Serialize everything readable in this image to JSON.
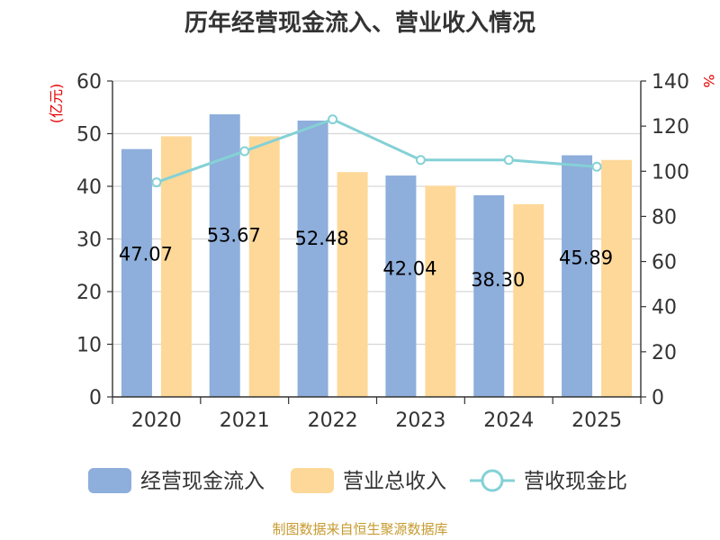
{
  "chart_data": {
    "type": "bar",
    "title": "历年经营现金流入、营业收入情况",
    "categories": [
      "2020",
      "2021",
      "2022",
      "2023",
      "2024",
      "2025"
    ],
    "left_axis": {
      "unit": "(亿元)",
      "ylim": [
        0,
        60
      ],
      "ticks": [
        "0",
        "10",
        "20",
        "30",
        "40",
        "50",
        "60"
      ]
    },
    "right_axis": {
      "unit": "%",
      "ylim": [
        0,
        140
      ],
      "ticks": [
        "0",
        "20",
        "40",
        "60",
        "80",
        "100",
        "120",
        "140"
      ]
    },
    "series": [
      {
        "name": "经营现金流入",
        "type": "bar",
        "axis": "left",
        "color": "#8eaedb",
        "values": [
          47.07,
          53.67,
          52.48,
          42.04,
          38.3,
          45.89
        ],
        "labels": [
          "47.07",
          "53.67",
          "52.48",
          "42.04",
          "38.30",
          "45.89"
        ]
      },
      {
        "name": "营业总收入",
        "type": "bar",
        "axis": "left",
        "color": "#fed898",
        "values": [
          49.5,
          49.5,
          42.7,
          40.1,
          36.6,
          45.0
        ]
      },
      {
        "name": "营收现金比",
        "type": "line",
        "axis": "right",
        "color": "#84d1d6",
        "values": [
          95.1,
          108.9,
          123.0,
          105.0,
          105.0,
          102.0
        ]
      }
    ],
    "grid": true,
    "legend": "bottom"
  },
  "source": "制图数据来自恒生聚源数据库"
}
